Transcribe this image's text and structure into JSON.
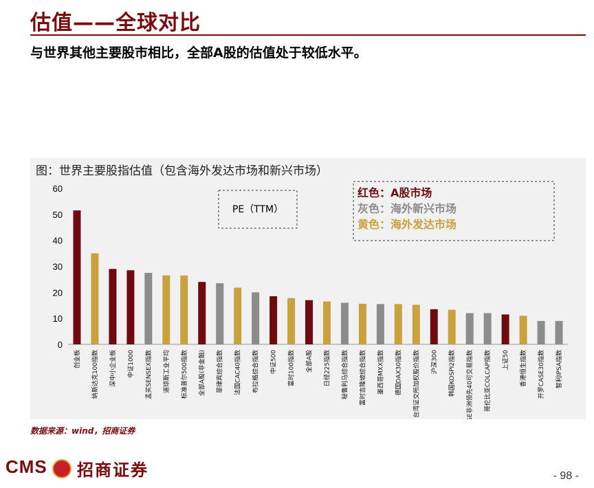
{
  "header": {
    "title": "估值——全球对比",
    "subtitle": "与世界其他主要股市相比，全部A股的估值处于较低水平。"
  },
  "chart_data": {
    "type": "bar",
    "title": "图：世界主要股指估值（包含海外发达市场和新兴市场）",
    "annotation": "PE（TTM）",
    "ylim": [
      0,
      60
    ],
    "yticks": [
      0,
      10,
      20,
      30,
      40,
      50,
      60
    ],
    "legend_placement": "top-right",
    "legend": [
      {
        "text": "红色：A股市场",
        "color": "#6e0b10"
      },
      {
        "text": "灰色：海外新兴市场",
        "color": "#8c8c8c"
      },
      {
        "text": "黄色：海外发达市场",
        "color": "#c9a23f"
      }
    ],
    "categories": [
      "创业板",
      "纳斯达克100指数",
      "深中小企业板",
      "中证1000",
      "孟买SENSEX指数",
      "道琼斯工业平均",
      "标准普尔500指数",
      "全部A股(非金融)",
      "菲律宾综合指数",
      "法国CAC40指数",
      "布拉格综合指数",
      "中证500",
      "富时100指数",
      "全部A股",
      "日经225指数",
      "秘鲁利马综合指数",
      "富时吉隆坡综合指数",
      "墨西哥MXX指数",
      "德国DAX30指数",
      "台湾证交所加权股价指数",
      "沪深300",
      "韩国KOSPI2指数",
      "JSE非洲领先40可交易指数",
      "哥伦比亚COLCAP指数",
      "上证50",
      "香港恒生指数",
      "开罗CASE30指数",
      "智利IPSA指数"
    ],
    "values": [
      51.5,
      35,
      29,
      28.5,
      27.5,
      26.5,
      26.5,
      24,
      23.5,
      21.8,
      20,
      18.5,
      17.8,
      17,
      16.5,
      16,
      15.6,
      15.5,
      15.5,
      15.2,
      13.5,
      13.3,
      12,
      12,
      11.5,
      11,
      9,
      9
    ],
    "colors": [
      "red",
      "yellow",
      "red",
      "red",
      "gray",
      "yellow",
      "yellow",
      "red",
      "gray",
      "yellow",
      "gray",
      "red",
      "yellow",
      "red",
      "yellow",
      "gray",
      "yellow",
      "gray",
      "yellow",
      "yellow",
      "red",
      "yellow",
      "gray",
      "gray",
      "red",
      "yellow",
      "gray",
      "gray"
    ],
    "palette": {
      "red": "#6e0b10",
      "gray": "#8c8c8c",
      "yellow": "#c9a23f"
    }
  },
  "source": "数据来源：wind，招商证券",
  "footer": {
    "logo_text": "CMS",
    "logo_cn": "招商证券",
    "page": "- 98 -"
  }
}
